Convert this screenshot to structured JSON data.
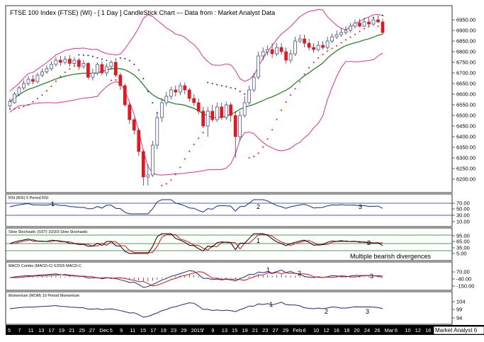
{
  "chart_data": [
    {
      "panel": "price",
      "type": "candlestick",
      "title": "FTSE 100 Index (FTSE) (WI) -  [ 1 Day ] CandleStick Chart --- Data from : Market Analyst Data",
      "ylim": [
        6150,
        6990
      ],
      "y_ticks": [
        "6950.00",
        "6900.00",
        "6850.00",
        "6800.00",
        "6750.00",
        "6700.00",
        "6650.00",
        "6600.00",
        "6550.00",
        "6500.00",
        "6450.00",
        "6400.00",
        "6350.00",
        "6300.00",
        "6250.00",
        "6200.00"
      ],
      "candles": [
        [
          6545,
          6565,
          6580,
          6530
        ],
        [
          6560,
          6600,
          6610,
          6555
        ],
        [
          6600,
          6630,
          6640,
          6590
        ],
        [
          6630,
          6650,
          6665,
          6620
        ],
        [
          6650,
          6670,
          6685,
          6640
        ],
        [
          6670,
          6660,
          6690,
          6645
        ],
        [
          6660,
          6690,
          6700,
          6650
        ],
        [
          6690,
          6705,
          6720,
          6680
        ],
        [
          6705,
          6720,
          6735,
          6695
        ],
        [
          6720,
          6740,
          6755,
          6710
        ],
        [
          6740,
          6760,
          6775,
          6730
        ],
        [
          6760,
          6750,
          6780,
          6735
        ],
        [
          6750,
          6765,
          6780,
          6740
        ],
        [
          6765,
          6745,
          6785,
          6730
        ],
        [
          6745,
          6760,
          6775,
          6735
        ],
        [
          6760,
          6730,
          6770,
          6715
        ],
        [
          6730,
          6745,
          6760,
          6720
        ],
        [
          6745,
          6680,
          6750,
          6670
        ],
        [
          6680,
          6700,
          6720,
          6665
        ],
        [
          6700,
          6740,
          6750,
          6690
        ],
        [
          6740,
          6700,
          6755,
          6690
        ],
        [
          6700,
          6730,
          6745,
          6685
        ],
        [
          6730,
          6750,
          6760,
          6715
        ],
        [
          6750,
          6690,
          6770,
          6680
        ],
        [
          6690,
          6640,
          6700,
          6620
        ],
        [
          6640,
          6550,
          6650,
          6540
        ],
        [
          6550,
          6480,
          6560,
          6460
        ],
        [
          6480,
          6430,
          6490,
          6410
        ],
        [
          6430,
          6330,
          6440,
          6310
        ],
        [
          6330,
          6210,
          6340,
          6170
        ],
        [
          6210,
          6220,
          6270,
          6170
        ],
        [
          6220,
          6360,
          6380,
          6210
        ],
        [
          6360,
          6490,
          6510,
          6340
        ],
        [
          6490,
          6560,
          6580,
          6470
        ],
        [
          6560,
          6590,
          6610,
          6545
        ],
        [
          6590,
          6620,
          6635,
          6575
        ],
        [
          6620,
          6610,
          6640,
          6590
        ],
        [
          6610,
          6640,
          6655,
          6595
        ],
        [
          6640,
          6620,
          6655,
          6600
        ],
        [
          6620,
          6580,
          6630,
          6565
        ],
        [
          6580,
          6560,
          6600,
          6545
        ],
        [
          6560,
          6520,
          6580,
          6505
        ],
        [
          6520,
          6450,
          6540,
          6440
        ],
        [
          6450,
          6520,
          6540,
          6400
        ],
        [
          6520,
          6480,
          6550,
          6470
        ],
        [
          6480,
          6540,
          6560,
          6470
        ],
        [
          6540,
          6490,
          6560,
          6480
        ],
        [
          6490,
          6550,
          6565,
          6480
        ],
        [
          6550,
          6500,
          6560,
          6470
        ],
        [
          6500,
          6400,
          6520,
          6300
        ],
        [
          6400,
          6500,
          6520,
          6380
        ],
        [
          6500,
          6560,
          6590,
          6490
        ],
        [
          6560,
          6620,
          6640,
          6550
        ],
        [
          6620,
          6680,
          6700,
          6610
        ],
        [
          6680,
          6780,
          6800,
          6670
        ],
        [
          6780,
          6800,
          6820,
          6760
        ],
        [
          6800,
          6810,
          6830,
          6785
        ],
        [
          6810,
          6790,
          6840,
          6770
        ],
        [
          6790,
          6820,
          6840,
          6780
        ],
        [
          6820,
          6800,
          6840,
          6785
        ],
        [
          6800,
          6760,
          6820,
          6745
        ],
        [
          6760,
          6790,
          6810,
          6745
        ],
        [
          6790,
          6850,
          6870,
          6780
        ],
        [
          6850,
          6860,
          6880,
          6840
        ],
        [
          6860,
          6840,
          6880,
          6820
        ],
        [
          6840,
          6820,
          6860,
          6805
        ],
        [
          6820,
          6810,
          6840,
          6795
        ],
        [
          6810,
          6830,
          6850,
          6800
        ],
        [
          6830,
          6820,
          6850,
          6810
        ],
        [
          6820,
          6850,
          6870,
          6810
        ],
        [
          6850,
          6870,
          6885,
          6840
        ],
        [
          6870,
          6880,
          6900,
          6860
        ],
        [
          6880,
          6890,
          6910,
          6870
        ],
        [
          6890,
          6900,
          6920,
          6880
        ],
        [
          6900,
          6920,
          6935,
          6890
        ],
        [
          6920,
          6935,
          6950,
          6910
        ],
        [
          6935,
          6920,
          6955,
          6915
        ],
        [
          6920,
          6940,
          6960,
          6915
        ],
        [
          6940,
          6930,
          6960,
          6920
        ],
        [
          6930,
          6950,
          6965,
          6920
        ],
        [
          6950,
          6940,
          6970,
          6935
        ],
        [
          6940,
          6890,
          6955,
          6880
        ]
      ]
    },
    {
      "panel": "rsi",
      "type": "line",
      "label": "RSI (RSI) 5 Period RSI",
      "y_ticks": [
        "70.00",
        "50.00",
        "30.00",
        "10.00"
      ],
      "annotations": [
        "1",
        "2",
        "3"
      ]
    },
    {
      "panel": "stochastic",
      "type": "line",
      "label": "Slow Stochastic (SST) 10/3/3 Slow Stochastic",
      "y_ticks": [
        "95.00",
        "65.00",
        "35.00",
        "5.00"
      ],
      "annotations": [
        "1",
        "2"
      ],
      "note": "Multiple bearish divergences"
    },
    {
      "panel": "macd",
      "type": "line",
      "label": "MACD Combo (MACD-C) 5/25/5 MACD-C",
      "y_ticks": [
        "70.00",
        "-40.00",
        "-150.00"
      ],
      "annotations": [
        "1",
        "2",
        "3"
      ]
    },
    {
      "panel": "momentum",
      "type": "line",
      "label": "Momentum (MOM) 10 Period Momentum",
      "y_ticks": [
        "104",
        "99",
        "94"
      ],
      "annotations": [
        "1",
        "2",
        "3"
      ]
    },
    {
      "panel": "x-axis",
      "type": "axis",
      "x_ticks": [
        "5",
        "7",
        "11",
        "13",
        "17",
        "19",
        "21",
        "25",
        "27",
        "Dec",
        "5",
        "9",
        "11",
        "15",
        "17",
        "19",
        "23",
        "29",
        "2015",
        "7",
        "9",
        "13",
        "15",
        "19",
        "21",
        "23",
        "27",
        "29",
        "Feb",
        "6",
        "10",
        "12",
        "16",
        "18",
        "20",
        "24",
        "26",
        "Mar",
        "6",
        "10",
        "12",
        "16"
      ],
      "footer": "Market Analyst 6"
    }
  ]
}
